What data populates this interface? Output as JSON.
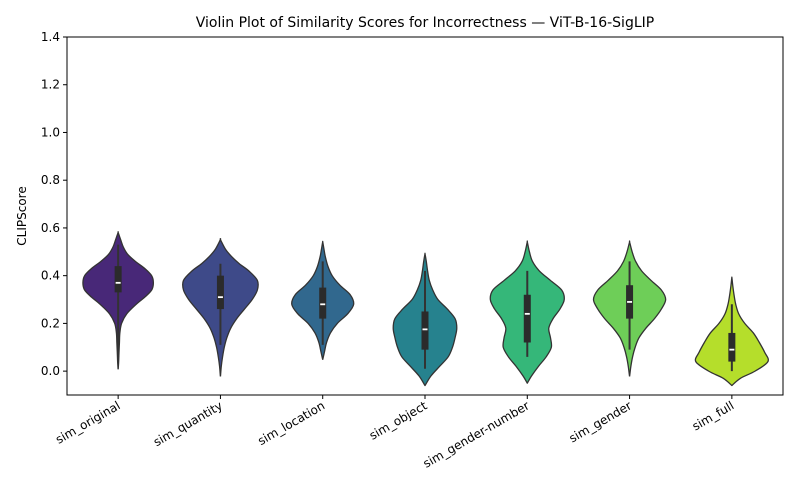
{
  "chart_data": {
    "type": "violin",
    "title": "Violin Plot of Similarity Scores for Incorrectness — ViT-B-16-SigLIP",
    "xlabel": "",
    "ylabel": "CLIPScore",
    "ylim": [
      -0.1,
      1.4
    ],
    "yticks": [
      0.0,
      0.2,
      0.4,
      0.6,
      0.8,
      1.0,
      1.2,
      1.4
    ],
    "ytick_labels": [
      "0.0",
      "0.2",
      "0.4",
      "0.6",
      "0.8",
      "1.0",
      "1.2",
      "1.4"
    ],
    "grid": false,
    "categories": [
      "sim_original",
      "sim_quantity",
      "sim_location",
      "sim_object",
      "sim_gender-number",
      "sim_gender",
      "sim_full"
    ],
    "colors": [
      "#482878",
      "#3e4a89",
      "#31688e",
      "#26828e",
      "#35b779",
      "#6ece58",
      "#b5de2b"
    ],
    "edge_color": "#333333",
    "violins": [
      {
        "name": "sim_original",
        "extent": [
          0.01,
          0.58
        ],
        "profile": [
          [
            0.01,
            0.002
          ],
          [
            0.04,
            0.012
          ],
          [
            0.08,
            0.02
          ],
          [
            0.12,
            0.03
          ],
          [
            0.16,
            0.04
          ],
          [
            0.2,
            0.08
          ],
          [
            0.24,
            0.2
          ],
          [
            0.28,
            0.42
          ],
          [
            0.31,
            0.62
          ],
          [
            0.34,
            0.78
          ],
          [
            0.37,
            0.82
          ],
          [
            0.4,
            0.78
          ],
          [
            0.43,
            0.62
          ],
          [
            0.46,
            0.4
          ],
          [
            0.49,
            0.22
          ],
          [
            0.52,
            0.12
          ],
          [
            0.55,
            0.06
          ],
          [
            0.58,
            0.002
          ]
        ],
        "q1": 0.33,
        "median": 0.37,
        "q3": 0.44,
        "whisker_low": 0.06,
        "whisker_high": 0.53
      },
      {
        "name": "sim_quantity",
        "extent": [
          -0.02,
          0.55
        ],
        "profile": [
          [
            -0.02,
            0.002
          ],
          [
            0.02,
            0.02
          ],
          [
            0.06,
            0.05
          ],
          [
            0.1,
            0.09
          ],
          [
            0.14,
            0.15
          ],
          [
            0.18,
            0.24
          ],
          [
            0.22,
            0.38
          ],
          [
            0.26,
            0.56
          ],
          [
            0.3,
            0.74
          ],
          [
            0.34,
            0.86
          ],
          [
            0.38,
            0.86
          ],
          [
            0.42,
            0.66
          ],
          [
            0.45,
            0.44
          ],
          [
            0.48,
            0.26
          ],
          [
            0.51,
            0.12
          ],
          [
            0.55,
            0.002
          ]
        ],
        "q1": 0.26,
        "median": 0.31,
        "q3": 0.4,
        "whisker_low": 0.11,
        "whisker_high": 0.45
      },
      {
        "name": "sim_location",
        "extent": [
          0.05,
          0.54
        ],
        "profile": [
          [
            0.05,
            0.002
          ],
          [
            0.08,
            0.04
          ],
          [
            0.12,
            0.09
          ],
          [
            0.16,
            0.18
          ],
          [
            0.2,
            0.34
          ],
          [
            0.24,
            0.58
          ],
          [
            0.28,
            0.72
          ],
          [
            0.32,
            0.64
          ],
          [
            0.36,
            0.4
          ],
          [
            0.4,
            0.22
          ],
          [
            0.44,
            0.12
          ],
          [
            0.48,
            0.06
          ],
          [
            0.51,
            0.03
          ],
          [
            0.54,
            0.002
          ]
        ],
        "q1": 0.22,
        "median": 0.28,
        "q3": 0.35,
        "whisker_low": 0.11,
        "whisker_high": 0.46
      },
      {
        "name": "sim_object",
        "extent": [
          -0.06,
          0.49
        ],
        "profile": [
          [
            -0.06,
            0.002
          ],
          [
            -0.02,
            0.14
          ],
          [
            0.02,
            0.34
          ],
          [
            0.06,
            0.54
          ],
          [
            0.1,
            0.64
          ],
          [
            0.14,
            0.7
          ],
          [
            0.18,
            0.74
          ],
          [
            0.22,
            0.7
          ],
          [
            0.26,
            0.52
          ],
          [
            0.3,
            0.3
          ],
          [
            0.34,
            0.18
          ],
          [
            0.38,
            0.1
          ],
          [
            0.42,
            0.06
          ],
          [
            0.46,
            0.03
          ],
          [
            0.49,
            0.002
          ]
        ],
        "q1": 0.09,
        "median": 0.175,
        "q3": 0.25,
        "whisker_low": 0.01,
        "whisker_high": 0.42
      },
      {
        "name": "sim_gender-number",
        "extent": [
          -0.05,
          0.54
        ],
        "profile": [
          [
            -0.05,
            0.002
          ],
          [
            -0.02,
            0.1
          ],
          [
            0.02,
            0.26
          ],
          [
            0.06,
            0.44
          ],
          [
            0.1,
            0.56
          ],
          [
            0.14,
            0.54
          ],
          [
            0.18,
            0.5
          ],
          [
            0.22,
            0.6
          ],
          [
            0.26,
            0.76
          ],
          [
            0.3,
            0.86
          ],
          [
            0.34,
            0.8
          ],
          [
            0.38,
            0.54
          ],
          [
            0.42,
            0.28
          ],
          [
            0.46,
            0.12
          ],
          [
            0.5,
            0.05
          ],
          [
            0.54,
            0.002
          ]
        ],
        "q1": 0.12,
        "median": 0.24,
        "q3": 0.32,
        "whisker_low": 0.06,
        "whisker_high": 0.42
      },
      {
        "name": "sim_gender",
        "extent": [
          -0.02,
          0.54
        ],
        "profile": [
          [
            -0.02,
            0.002
          ],
          [
            0.02,
            0.03
          ],
          [
            0.06,
            0.07
          ],
          [
            0.1,
            0.13
          ],
          [
            0.14,
            0.22
          ],
          [
            0.18,
            0.38
          ],
          [
            0.22,
            0.58
          ],
          [
            0.26,
            0.74
          ],
          [
            0.3,
            0.84
          ],
          [
            0.34,
            0.74
          ],
          [
            0.38,
            0.5
          ],
          [
            0.42,
            0.28
          ],
          [
            0.46,
            0.14
          ],
          [
            0.5,
            0.06
          ],
          [
            0.54,
            0.002
          ]
        ],
        "q1": 0.22,
        "median": 0.29,
        "q3": 0.36,
        "whisker_low": 0.09,
        "whisker_high": 0.46
      },
      {
        "name": "sim_full",
        "extent": [
          -0.06,
          0.39
        ],
        "profile": [
          [
            -0.06,
            0.002
          ],
          [
            -0.03,
            0.2
          ],
          [
            0.0,
            0.54
          ],
          [
            0.04,
            0.84
          ],
          [
            0.08,
            0.76
          ],
          [
            0.12,
            0.64
          ],
          [
            0.16,
            0.5
          ],
          [
            0.2,
            0.3
          ],
          [
            0.24,
            0.16
          ],
          [
            0.28,
            0.09
          ],
          [
            0.32,
            0.05
          ],
          [
            0.36,
            0.02
          ],
          [
            0.39,
            0.002
          ]
        ],
        "q1": 0.04,
        "median": 0.09,
        "q3": 0.16,
        "whisker_low": 0.0,
        "whisker_high": 0.28
      }
    ]
  }
}
